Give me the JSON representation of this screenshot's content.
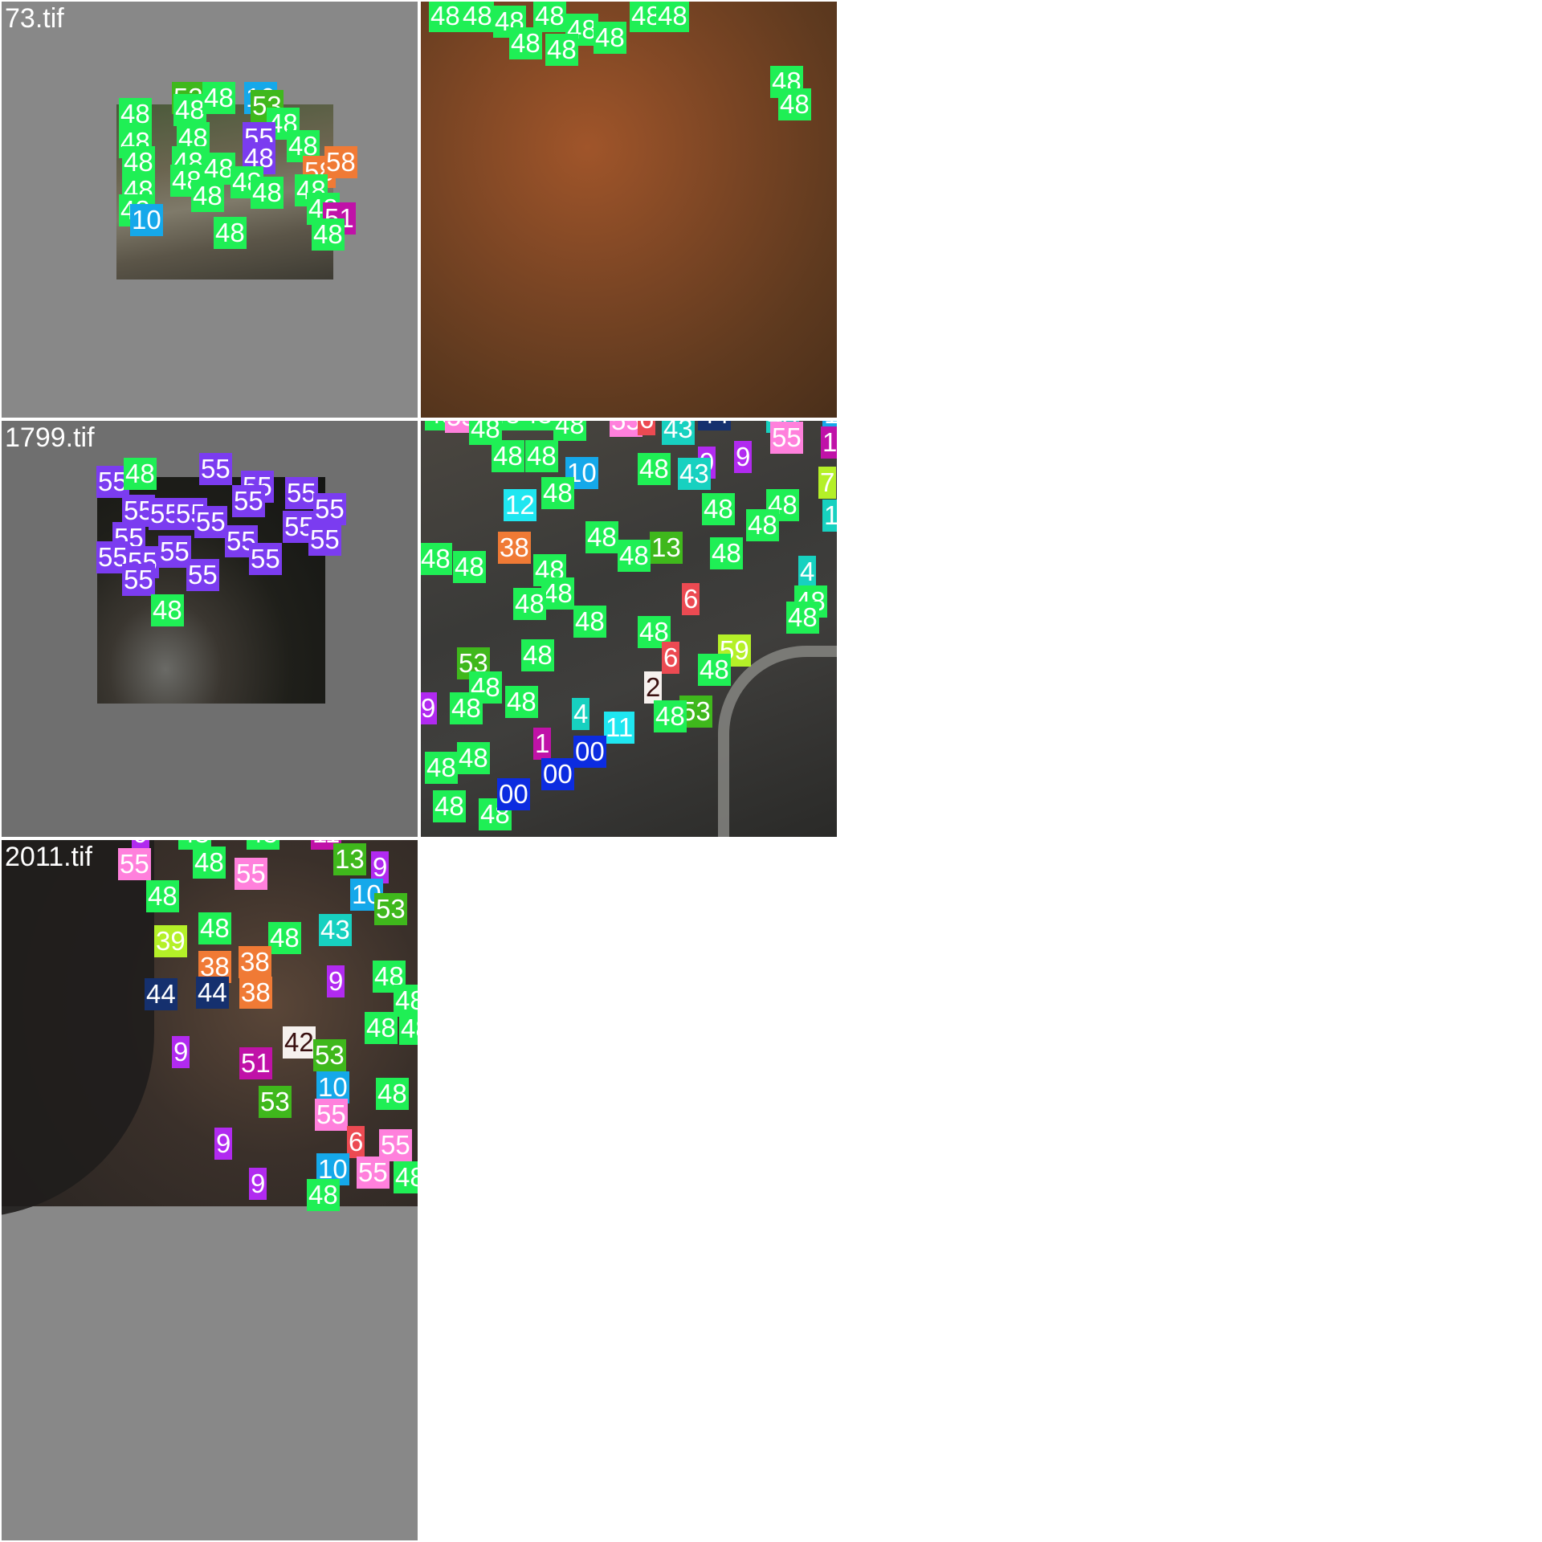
{
  "tiles": {
    "t73": {
      "name": "73.tif"
    },
    "t1799": {
      "name": "1799.tif"
    },
    "t2011": {
      "name": "2011.tif"
    }
  },
  "colors": {
    "green": "#1fef55",
    "pink": "#ff80dc",
    "violet": "#7b3cf0",
    "purple": "#b12af0",
    "magenta": "#c012a8",
    "orange": "#f07a35",
    "lime": "#b4f028",
    "olive": "#3fb81c",
    "sky": "#15a8ea",
    "cyan": "#1fe6f0",
    "teal": "#17d1c0",
    "navy": "#15306e",
    "blue": "#0c2ce0",
    "red": "#ec4a52",
    "white": "#f6f1ee"
  },
  "labels": {
    "l48": "48",
    "l55": "55",
    "l53": "53",
    "l58": "58",
    "l51": "51",
    "l10": "10",
    "l38": "38",
    "l13": "13",
    "l43": "43",
    "l44": "44",
    "l12": "12",
    "l59": "59",
    "l14": "14",
    "l11": "11",
    "l9": "9",
    "l6": "6",
    "l4": "4",
    "l7": "7",
    "l2": "2",
    "l39": "39",
    "l42": "42",
    "l00": "00",
    "l1": "1",
    "l5": "5"
  }
}
